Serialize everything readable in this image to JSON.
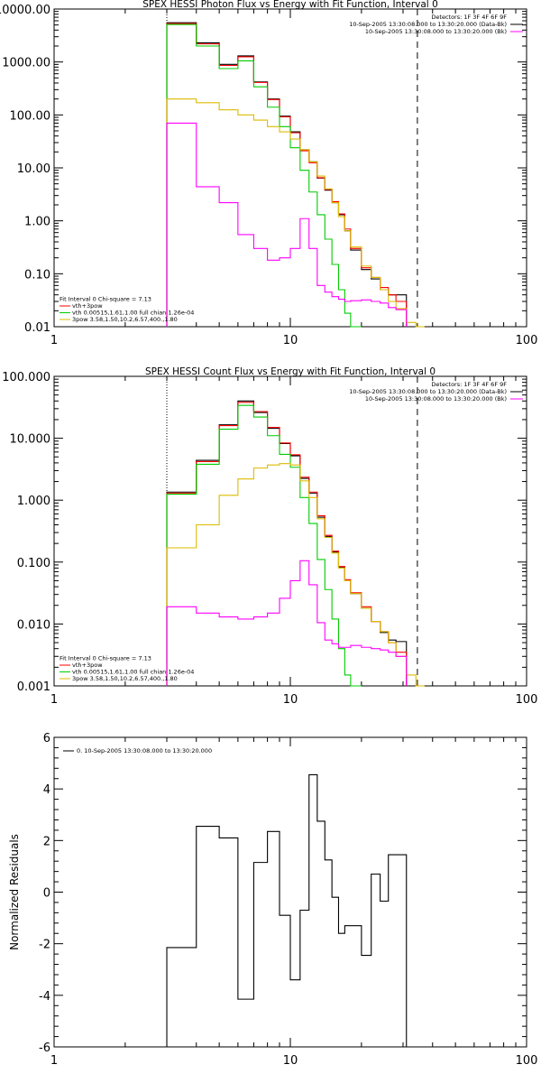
{
  "chart_data": [
    {
      "type": "line",
      "title": "SPEX HESSI Photon Flux vs Energy with Fit Function, Interval 0",
      "xscale": "log",
      "yscale": "log",
      "xlim": [
        1,
        100
      ],
      "ylim": [
        0.01,
        10000
      ],
      "xticks": [
        1,
        10,
        100
      ],
      "xtick_labels": [
        "1",
        "10",
        "100"
      ],
      "yticks": [
        0.01,
        0.1,
        1,
        10,
        100,
        1000,
        10000
      ],
      "ytick_labels": [
        "0.01",
        "0.10",
        "1.00",
        "10.00",
        "100.00",
        "1000.00",
        "10000.00"
      ],
      "vlines": [
        {
          "x": 3,
          "style": "dotted"
        },
        {
          "x": 34.5,
          "style": "dashed"
        }
      ],
      "legend_top": [
        {
          "text": "Detectors: 1F 3F 4F 6F 9F",
          "color": null
        },
        {
          "text": "10-Sep-2005 13:30:08.000 to 13:30:20.000 (Data-Bk)",
          "color": "#000000"
        },
        {
          "text": "10-Sep-2005 13:30:08.000 to 13:30:20.000 (Bk)",
          "color": "#ff00ff"
        }
      ],
      "legend_bottom": [
        {
          "text": "Fit Interval 0   Chi-square = 7.13",
          "color": null
        },
        {
          "text": "vth+3pow",
          "color": "#ff0000"
        },
        {
          "text": "vth 0.00515,1.61,1.00  full chian 1.26e-04",
          "color": "#00cc00"
        },
        {
          "text": "3pow 3.58,1.50,10.2,6.57,400.,1.80",
          "color": "#ddbb00"
        }
      ],
      "edges": [
        3,
        4,
        5,
        6,
        7,
        8,
        9,
        10,
        11,
        12,
        13,
        14,
        15,
        16,
        17,
        18,
        20,
        22,
        24,
        26,
        28,
        31,
        34,
        37
      ],
      "series": [
        {
          "color": "#000000",
          "values": [
            5500,
            2300,
            900,
            1300,
            420,
            200,
            95,
            48,
            22,
            13,
            6.4,
            3.8,
            2.2,
            1.3,
            0.65,
            0.28,
            0.12,
            0.08,
            0.05,
            0.04,
            0.04,
            null,
            null
          ]
        },
        {
          "color": "#ff0000",
          "values": [
            5300,
            2200,
            860,
            1250,
            410,
            195,
            92,
            46,
            21,
            12.5,
            6.5,
            3.9,
            2.3,
            1.35,
            0.7,
            0.3,
            0.13,
            0.085,
            0.055,
            0.04,
            0.03,
            null,
            null
          ]
        },
        {
          "color": "#00cc00",
          "values": [
            5100,
            2000,
            750,
            1050,
            340,
            140,
            60,
            24,
            9,
            3.5,
            1.3,
            0.45,
            0.15,
            0.05,
            0.018,
            0.007,
            null,
            null,
            null,
            null,
            null,
            null,
            null
          ]
        },
        {
          "color": "#ddbb00",
          "values": [
            200,
            170,
            125,
            100,
            80,
            60,
            48,
            35,
            22,
            13,
            7,
            4,
            2.2,
            1.2,
            0.65,
            0.32,
            0.14,
            0.085,
            0.05,
            0.03,
            0.022,
            0.012,
            0.01
          ]
        },
        {
          "color": "#ff00ff",
          "values": [
            70,
            4.4,
            2.2,
            0.55,
            0.3,
            0.18,
            0.2,
            0.3,
            1.1,
            0.3,
            0.06,
            0.045,
            0.037,
            0.033,
            0.03,
            0.031,
            0.032,
            0.03,
            0.028,
            0.023,
            0.021,
            null,
            null
          ]
        }
      ]
    },
    {
      "type": "line",
      "title": "SPEX HESSI Count Flux vs Energy with Fit Function, Interval 0",
      "xscale": "log",
      "yscale": "log",
      "xlim": [
        1,
        100
      ],
      "ylim": [
        0.001,
        100
      ],
      "xticks": [
        1,
        10,
        100
      ],
      "xtick_labels": [
        "1",
        "10",
        "100"
      ],
      "yticks": [
        0.001,
        0.01,
        0.1,
        1,
        10,
        100
      ],
      "ytick_labels": [
        "0.001",
        "0.010",
        "0.100",
        "1.000",
        "10.000",
        "100.000"
      ],
      "vlines": [
        {
          "x": 3,
          "style": "dotted"
        },
        {
          "x": 34.5,
          "style": "dashed"
        }
      ],
      "legend_top": [
        {
          "text": "Detectors: 1F 3F 4F 6F 9F",
          "color": null
        },
        {
          "text": "10-Sep-2005 13:30:08.000 to 13:30:20.000 (Data-Bk)",
          "color": "#000000"
        },
        {
          "text": "10-Sep-2005 13:30:08.000 to 13:30:20.000 (Bk)",
          "color": "#ff00ff"
        }
      ],
      "legend_bottom": [
        {
          "text": "Fit Interval 0   Chi-square = 7.13",
          "color": null
        },
        {
          "text": "vth+3pow",
          "color": "#ff0000"
        },
        {
          "text": "vth 0.00515,1.61,1.00  full chian 1.26e-04",
          "color": "#00cc00"
        },
        {
          "text": "3pow 3.58,1.50,10.2,6.57,400.,1.80",
          "color": "#ddbb00"
        }
      ],
      "edges": [
        3,
        4,
        5,
        6,
        7,
        8,
        9,
        10,
        11,
        12,
        13,
        14,
        15,
        16,
        17,
        18,
        20,
        22,
        24,
        26,
        28,
        31,
        34,
        37
      ],
      "series": [
        {
          "color": "#000000",
          "values": [
            1.35,
            4.4,
            16.5,
            40,
            26,
            14.5,
            8.2,
            5.2,
            2.25,
            1.3,
            0.53,
            0.26,
            0.145,
            0.083,
            0.05,
            0.031,
            0.018,
            0.011,
            0.0073,
            0.0055,
            0.0052,
            null,
            null
          ]
        },
        {
          "color": "#ff0000",
          "values": [
            1.3,
            4.2,
            16,
            38,
            27,
            15,
            8.4,
            5.4,
            2.35,
            1.35,
            0.56,
            0.27,
            0.15,
            0.085,
            0.052,
            0.032,
            0.019,
            0.011,
            0.0075,
            0.005,
            0.0035,
            null,
            null
          ]
        },
        {
          "color": "#00cc00",
          "values": [
            1.25,
            3.8,
            14,
            34,
            22,
            11,
            5.5,
            3.4,
            1.1,
            0.42,
            0.11,
            0.036,
            0.012,
            0.004,
            0.0015,
            0.0006,
            null,
            null,
            null,
            null,
            null,
            null,
            null
          ]
        },
        {
          "color": "#ddbb00",
          "values": [
            0.17,
            0.4,
            1.2,
            2.2,
            3.3,
            3.7,
            3.9,
            3.7,
            2.05,
            1.1,
            0.5,
            0.25,
            0.14,
            0.08,
            0.05,
            0.031,
            0.018,
            0.011,
            0.0075,
            0.005,
            0.003,
            0.0015,
            0.001
          ]
        },
        {
          "color": "#ff00ff",
          "values": [
            0.019,
            0.015,
            0.013,
            0.012,
            0.013,
            0.015,
            0.026,
            0.05,
            0.105,
            0.043,
            0.0105,
            0.0055,
            0.0048,
            0.0042,
            0.0042,
            0.0045,
            0.0042,
            0.004,
            0.0038,
            0.0035,
            0.003,
            null,
            null
          ]
        }
      ]
    },
    {
      "type": "line",
      "title": "",
      "ylabel": "Normalized Residuals",
      "xscale": "log",
      "yscale": "linear",
      "xlim": [
        1,
        100
      ],
      "ylim": [
        -6,
        6
      ],
      "xticks": [
        1,
        10,
        100
      ],
      "xtick_labels": [
        "1",
        "10",
        "100"
      ],
      "yticks": [
        -6,
        -4,
        -2,
        0,
        2,
        4,
        6
      ],
      "ytick_labels": [
        "-6",
        "-4",
        "-2",
        "0",
        "2",
        "4",
        "6"
      ],
      "legend_top": [
        {
          "text": "0. 10-Sep-2005 13:30:08.000 to 13:30:20.000",
          "color": "#000000"
        }
      ],
      "edges": [
        3,
        4,
        5,
        6,
        7,
        8,
        9,
        10,
        11,
        12,
        13,
        14,
        15,
        16,
        17,
        18,
        20,
        22,
        24,
        26,
        28,
        31,
        34
      ],
      "series": [
        {
          "color": "#000000",
          "values": [
            -2.15,
            2.55,
            2.1,
            -4.15,
            1.15,
            2.35,
            -0.9,
            -3.4,
            -0.7,
            4.55,
            2.75,
            1.25,
            -0.2,
            -1.6,
            -1.3,
            -1.3,
            -2.45,
            0.7,
            -0.35,
            1.45,
            1.45,
            -6
          ]
        }
      ]
    }
  ]
}
